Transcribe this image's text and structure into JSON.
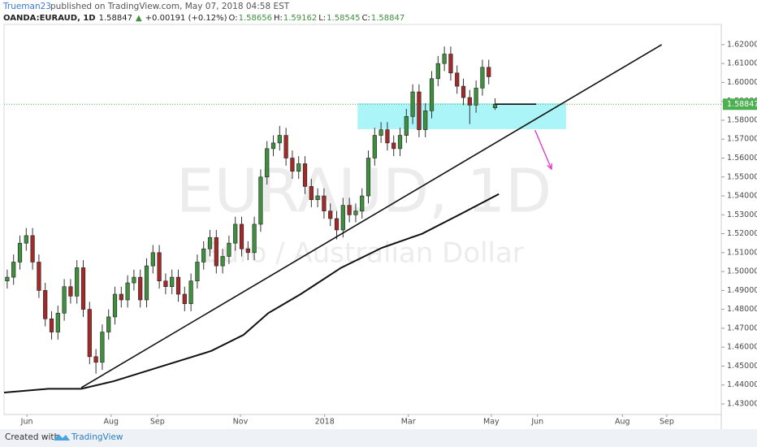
{
  "header": {
    "author": "Trueman23",
    "published": "published on TradingView.com, May 07, 2018 04:58 EST"
  },
  "footer": {
    "text": "Created with",
    "brand": "TradingView"
  },
  "chart_data": {
    "type": "candlestick",
    "title": "OANDA:EURAUD, 1D",
    "change_arrow": "▲",
    "change": "+0.00191 (+0.12%)",
    "ohlc_labels": [
      "O:",
      "H:",
      "L:",
      "C:"
    ],
    "watermark": [
      "EURAUD, 1D",
      "Euro / Australian Dollar"
    ],
    "up_color": "#3f8f3f",
    "down_color": "#a32a2a",
    "open": [
      1.495,
      1.497,
      1.505,
      1.515,
      1.519,
      1.505,
      1.49,
      1.475,
      1.468,
      1.478,
      1.492,
      1.487,
      1.502,
      1.48,
      1.455,
      1.452,
      1.468,
      1.476,
      1.488,
      1.485,
      1.494,
      1.497,
      1.485,
      1.503,
      1.51,
      1.495,
      1.492,
      1.497,
      1.488,
      1.483,
      1.495,
      1.505,
      1.512,
      1.518,
      1.503,
      1.508,
      1.515,
      1.525,
      1.512,
      1.51,
      1.525,
      1.55,
      1.565,
      1.568,
      1.572,
      1.56,
      1.553,
      1.557,
      1.545,
      1.538,
      1.54,
      1.532,
      1.528,
      1.522,
      1.535,
      1.53,
      1.532,
      1.54,
      1.56,
      1.572,
      1.575,
      1.568,
      1.565,
      1.572,
      1.582,
      1.595,
      1.575,
      1.585,
      1.602,
      1.61,
      1.615,
      1.605,
      1.598,
      1.592,
      1.588,
      1.597,
      1.608,
      1.58656
    ],
    "high": [
      1.501,
      1.509,
      1.519,
      1.523,
      1.523,
      1.509,
      1.494,
      1.479,
      1.482,
      1.496,
      1.496,
      1.506,
      1.506,
      1.484,
      1.459,
      1.472,
      1.48,
      1.492,
      1.492,
      1.498,
      1.501,
      1.501,
      1.507,
      1.514,
      1.514,
      1.499,
      1.501,
      1.501,
      1.492,
      1.499,
      1.509,
      1.516,
      1.522,
      1.522,
      1.512,
      1.519,
      1.529,
      1.529,
      1.516,
      1.529,
      1.554,
      1.569,
      1.572,
      1.577,
      1.576,
      1.564,
      1.561,
      1.561,
      1.549,
      1.544,
      1.544,
      1.536,
      1.532,
      1.539,
      1.539,
      1.536,
      1.544,
      1.564,
      1.576,
      1.579,
      1.579,
      1.572,
      1.576,
      1.586,
      1.599,
      1.599,
      1.589,
      1.606,
      1.614,
      1.619,
      1.619,
      1.609,
      1.602,
      1.596,
      1.601,
      1.612,
      1.612,
      1.59162
    ],
    "low": [
      1.491,
      1.493,
      1.501,
      1.511,
      1.501,
      1.486,
      1.471,
      1.464,
      1.464,
      1.474,
      1.483,
      1.483,
      1.476,
      1.451,
      1.446,
      1.448,
      1.464,
      1.472,
      1.481,
      1.481,
      1.49,
      1.481,
      1.481,
      1.499,
      1.491,
      1.488,
      1.488,
      1.484,
      1.479,
      1.479,
      1.491,
      1.501,
      1.508,
      1.499,
      1.499,
      1.504,
      1.511,
      1.508,
      1.506,
      1.506,
      1.521,
      1.546,
      1.561,
      1.564,
      1.556,
      1.549,
      1.549,
      1.541,
      1.534,
      1.534,
      1.528,
      1.524,
      1.517,
      1.518,
      1.526,
      1.526,
      1.528,
      1.536,
      1.556,
      1.568,
      1.564,
      1.561,
      1.561,
      1.568,
      1.578,
      1.571,
      1.571,
      1.581,
      1.598,
      1.606,
      1.601,
      1.594,
      1.588,
      1.578,
      1.584,
      1.593,
      1.599,
      1.58545
    ],
    "close": [
      1.497,
      1.505,
      1.515,
      1.519,
      1.505,
      1.49,
      1.475,
      1.468,
      1.478,
      1.492,
      1.487,
      1.502,
      1.48,
      1.455,
      1.452,
      1.468,
      1.476,
      1.488,
      1.485,
      1.494,
      1.497,
      1.485,
      1.503,
      1.51,
      1.495,
      1.492,
      1.497,
      1.488,
      1.483,
      1.495,
      1.505,
      1.512,
      1.518,
      1.503,
      1.508,
      1.515,
      1.525,
      1.512,
      1.51,
      1.525,
      1.55,
      1.565,
      1.568,
      1.572,
      1.56,
      1.553,
      1.557,
      1.545,
      1.538,
      1.54,
      1.532,
      1.528,
      1.522,
      1.535,
      1.53,
      1.532,
      1.54,
      1.56,
      1.572,
      1.575,
      1.568,
      1.565,
      1.572,
      1.582,
      1.595,
      1.575,
      1.585,
      1.602,
      1.61,
      1.615,
      1.605,
      1.598,
      1.592,
      1.588,
      1.597,
      1.608,
      1.603,
      1.58847
    ],
    "moving_average": {
      "color": "#111",
      "x": [
        -0.5,
        6.5,
        11.7,
        16.8,
        24.5,
        32.2,
        37.3,
        41.2,
        46.3,
        52.7,
        59.1,
        65.5,
        71.9,
        77.6
      ],
      "values": [
        1.436,
        1.438,
        1.438,
        1.442,
        1.45,
        1.458,
        1.4665,
        1.478,
        1.488,
        1.502,
        1.5125,
        1.52,
        1.531,
        1.541
      ]
    },
    "trendline": {
      "color": "#111",
      "x": [
        11.7,
        103.3
      ],
      "values": [
        1.4386,
        1.62
      ]
    },
    "level_line": {
      "color": "#111",
      "x": [
        77,
        83.5
      ],
      "values": [
        1.5885,
        1.5885
      ]
    },
    "zone": {
      "color": "#8ff0f5",
      "x": [
        55.3,
        88.2
      ],
      "values": [
        1.5753,
        1.589
      ]
    },
    "arrow": {
      "color": "#e040c8",
      "x": [
        83.3,
        85.9
      ],
      "values": [
        1.5748,
        1.5542
      ]
    },
    "price_line_color": "#4caf50",
    "xlim": [
      -0.5,
      112.7
    ],
    "xticks": [
      {
        "value": 3.1,
        "label": "Jun"
      },
      {
        "value": 16.4,
        "label": "Aug"
      },
      {
        "value": 23.7,
        "label": "Sep"
      },
      {
        "value": 36.8,
        "label": "Nov"
      },
      {
        "value": 50.1,
        "label": "2018"
      },
      {
        "value": 63.3,
        "label": "Mar"
      },
      {
        "value": 76.4,
        "label": "May"
      },
      {
        "value": 83.7,
        "label": "Jun"
      },
      {
        "value": 97.1,
        "label": "Aug"
      },
      {
        "value": 104.1,
        "label": "Sep"
      }
    ],
    "ylim": [
      1.4244,
      1.6307
    ],
    "yticks": [
      {
        "value": 1.43,
        "label": "1.43000"
      },
      {
        "value": 1.44,
        "label": "1.44000"
      },
      {
        "value": 1.45,
        "label": "1.45000"
      },
      {
        "value": 1.46,
        "label": "1.46000"
      },
      {
        "value": 1.47,
        "label": "1.47000"
      },
      {
        "value": 1.48,
        "label": "1.48000"
      },
      {
        "value": 1.49,
        "label": "1.49000"
      },
      {
        "value": 1.5,
        "label": "1.50000"
      },
      {
        "value": 1.51,
        "label": "1.51000"
      },
      {
        "value": 1.52,
        "label": "1.52000"
      },
      {
        "value": 1.53,
        "label": "1.53000"
      },
      {
        "value": 1.54,
        "label": "1.54000"
      },
      {
        "value": 1.55,
        "label": "1.55000"
      },
      {
        "value": 1.56,
        "label": "1.56000"
      },
      {
        "value": 1.57,
        "label": "1.57000"
      },
      {
        "value": 1.58,
        "label": "1.58000"
      },
      {
        "value": 1.59,
        "label": "1.59000"
      },
      {
        "value": 1.6,
        "label": "1.60000"
      },
      {
        "value": 1.61,
        "label": "1.61000"
      },
      {
        "value": 1.62,
        "label": "1.62000"
      }
    ],
    "grid": false
  }
}
